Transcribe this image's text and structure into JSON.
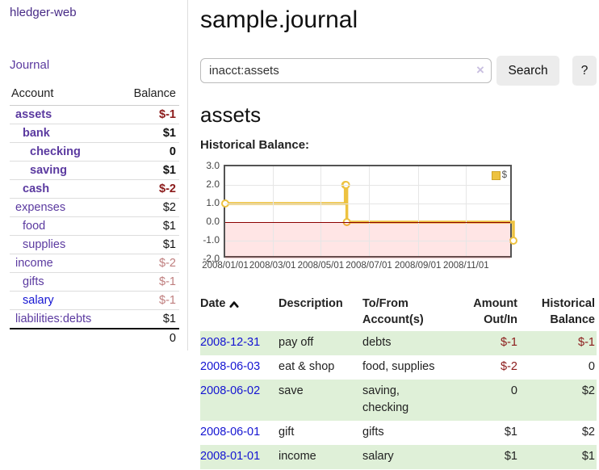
{
  "colors": {
    "link_purple": "#5b3aa0",
    "brand_purple": "#472a86",
    "link_blue": "#1414d2",
    "negative_strong": "#8b1a1a",
    "negative_soft": "#bf7e7e",
    "row_green": "#dff0d8",
    "series_gold": "#edc240",
    "zero_line_red": "#8b0000",
    "chart_border": "#545454"
  },
  "sidebar": {
    "brand": "hledger-web",
    "journal_link": "Journal",
    "accounts": {
      "col_account": "Account",
      "col_balance": "Balance",
      "rows": [
        {
          "name": "assets",
          "balance": "$-1"
        },
        {
          "name": "bank",
          "balance": "$1"
        },
        {
          "name": "checking",
          "balance": "0"
        },
        {
          "name": "saving",
          "balance": "$1"
        },
        {
          "name": "cash",
          "balance": "$-2"
        },
        {
          "name": "expenses",
          "balance": "$2"
        },
        {
          "name": "food",
          "balance": "$1"
        },
        {
          "name": "supplies",
          "balance": "$1"
        },
        {
          "name": "income",
          "balance": "$-2"
        },
        {
          "name": "gifts",
          "balance": "$-1"
        },
        {
          "name": "salary",
          "balance": "$-1"
        },
        {
          "name": "liabilities:debts",
          "balance": "$1"
        }
      ],
      "total": "0"
    }
  },
  "main": {
    "title": "sample.journal",
    "search": {
      "value": "inacct:assets",
      "clear_icon": "×",
      "button_label": "Search",
      "help_label": "?"
    },
    "account_heading": "assets",
    "chart_label": "Historical Balance:"
  },
  "chart_data": {
    "type": "line",
    "title": "Historical Balance",
    "step": true,
    "xrange": [
      "2008-01-01",
      "2008-12-31"
    ],
    "ylim": [
      -2,
      3
    ],
    "yticks": [
      "3.0",
      "2.0",
      "1.0",
      "0.0",
      "-1.0",
      "-2.0"
    ],
    "xticks": [
      "2008/01/01",
      "2008/03/01",
      "2008/05/01",
      "2008/07/01",
      "2008/09/01",
      "2008/11/01"
    ],
    "series": [
      {
        "name": "$",
        "color": "#edc240",
        "points": [
          [
            "2008-01-01",
            1
          ],
          [
            "2008-06-01",
            2
          ],
          [
            "2008-06-02",
            2
          ],
          [
            "2008-06-03",
            0
          ],
          [
            "2008-12-31",
            -1
          ]
        ]
      }
    ],
    "legend": {
      "label": "$",
      "position": "top-right"
    },
    "negative_region": true,
    "grid": true
  },
  "register": {
    "headers": {
      "date": "Date",
      "description": "Description",
      "accounts": "To/From Account(s)",
      "amount": "Amount Out/In",
      "balance": "Historical Balance"
    },
    "rows": [
      {
        "date": "2008-12-31",
        "description": "pay off",
        "accounts": "debts",
        "amount": "$-1",
        "balance": "$-1"
      },
      {
        "date": "2008-06-03",
        "description": "eat & shop",
        "accounts": "food, supplies",
        "amount": "$-2",
        "balance": "0"
      },
      {
        "date": "2008-06-02",
        "description": "save",
        "accounts": "saving, checking",
        "amount": "0",
        "balance": "$2"
      },
      {
        "date": "2008-06-01",
        "description": "gift",
        "accounts": "gifts",
        "amount": "$1",
        "balance": "$2"
      },
      {
        "date": "2008-01-01",
        "description": "income",
        "accounts": "salary",
        "amount": "$1",
        "balance": "$1"
      }
    ]
  }
}
